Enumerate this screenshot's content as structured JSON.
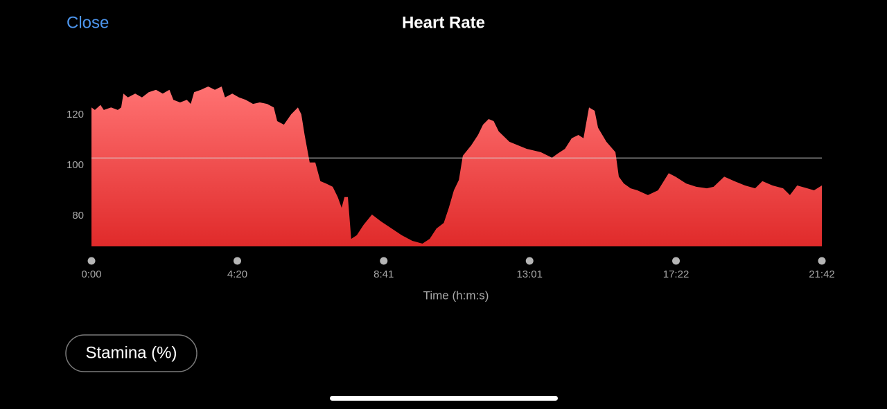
{
  "header": {
    "close": "Close",
    "title": "Heart Rate"
  },
  "chart_data": {
    "type": "area",
    "xlabel": "Time (h:m:s)",
    "x": [
      0,
      6,
      16,
      22,
      35,
      47,
      53,
      57,
      65,
      78,
      90,
      102,
      115,
      127,
      139,
      146,
      158,
      170,
      177,
      183,
      195,
      208,
      220,
      232,
      238,
      251,
      263,
      275,
      288,
      300,
      313,
      325,
      331,
      343,
      356,
      368,
      374,
      380,
      389,
      399,
      408,
      418,
      430,
      439,
      446,
      451,
      457,
      463,
      473,
      485,
      500,
      516,
      535,
      553,
      572,
      590,
      603,
      615,
      628,
      637,
      646,
      655,
      662,
      677,
      689,
      698,
      708,
      717,
      726,
      745,
      776,
      801,
      821,
      831,
      844,
      856,
      868,
      877,
      887,
      897,
      903,
      918,
      934,
      940,
      949,
      961,
      973,
      992,
      1010,
      1029,
      1041,
      1060,
      1078,
      1097,
      1109,
      1128,
      1146,
      1165,
      1183,
      1196,
      1214,
      1233,
      1245,
      1258,
      1276,
      1288,
      1302
    ],
    "values": [
      123,
      122,
      124,
      122,
      123,
      122,
      123,
      128.5,
      127,
      128.5,
      127,
      129,
      130,
      128.5,
      130,
      126,
      125,
      126,
      124.4,
      129,
      130,
      131.3,
      130,
      131.3,
      127,
      128.5,
      127,
      126,
      124.4,
      125,
      124.4,
      123,
      117.6,
      116.2,
      120.3,
      123,
      120.3,
      112.1,
      101.2,
      101.2,
      93.8,
      92.9,
      91.6,
      87.5,
      83.3,
      87.5,
      87.5,
      71,
      72.4,
      76.5,
      80.6,
      77.9,
      75.1,
      72.4,
      70.2,
      69.1,
      71,
      75.1,
      77.3,
      83.3,
      90.2,
      94.3,
      103.9,
      108,
      112.1,
      116.2,
      118.4,
      117.6,
      113.5,
      109.4,
      106.6,
      105.3,
      103.1,
      104.7,
      106.6,
      110.8,
      112.1,
      110.8,
      123,
      121.7,
      115,
      109.4,
      105.3,
      95.6,
      92.9,
      91,
      90.2,
      88.3,
      90.2,
      97,
      95.6,
      92.9,
      91.6,
      91,
      91.6,
      95.6,
      93.8,
      92.1,
      91,
      93.8,
      92.1,
      91,
      88.3,
      92.1,
      91,
      90.2,
      92.1
    ],
    "color": "#f24a4a",
    "reference_line": 103,
    "xlim": [
      0,
      1302
    ],
    "xticks": [
      {
        "value": 0,
        "label": "0:00"
      },
      {
        "value": 260,
        "label": "4:20"
      },
      {
        "value": 521,
        "label": "8:41"
      },
      {
        "value": 781,
        "label": "13:01"
      },
      {
        "value": 1042,
        "label": "17:22"
      },
      {
        "value": 1302,
        "label": "21:42"
      }
    ],
    "ylim": [
      68,
      132
    ],
    "yticks": [
      80,
      100,
      120
    ]
  },
  "button": {
    "label": "Stamina (%)"
  }
}
